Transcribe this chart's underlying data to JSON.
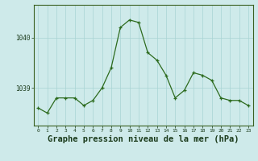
{
  "x": [
    0,
    1,
    2,
    3,
    4,
    5,
    6,
    7,
    8,
    9,
    10,
    11,
    12,
    13,
    14,
    15,
    16,
    17,
    18,
    19,
    20,
    21,
    22,
    23
  ],
  "y": [
    1038.6,
    1038.5,
    1038.8,
    1038.8,
    1038.8,
    1038.65,
    1038.75,
    1039.0,
    1039.4,
    1040.2,
    1040.35,
    1040.3,
    1039.7,
    1039.55,
    1039.25,
    1038.8,
    1038.95,
    1039.3,
    1039.25,
    1039.15,
    1038.8,
    1038.75,
    1038.75,
    1038.65
  ],
  "line_color": "#2d6b1e",
  "marker_color": "#2d6b1e",
  "bg_color": "#ceeaea",
  "grid_color": "#a8d4d4",
  "yticks": [
    1039.0,
    1040.0
  ],
  "xlabel": "Graphe pression niveau de la mer (hPa)",
  "xlabel_fontsize": 7.5,
  "xlim": [
    -0.5,
    23.5
  ],
  "ylim": [
    1038.25,
    1040.65
  ],
  "xtick_labels": [
    "0",
    "1",
    "2",
    "3",
    "4",
    "5",
    "6",
    "7",
    "8",
    "9",
    "10",
    "11",
    "12",
    "13",
    "14",
    "15",
    "16",
    "17",
    "18",
    "19",
    "20",
    "21",
    "22",
    "23"
  ]
}
